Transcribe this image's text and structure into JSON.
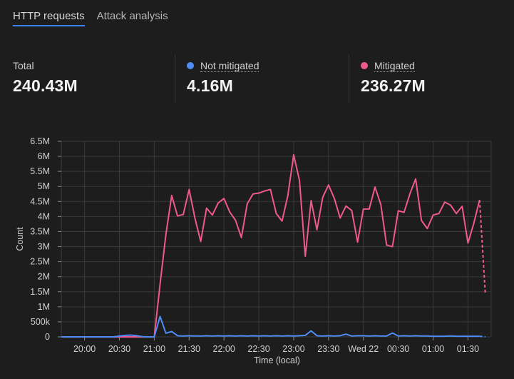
{
  "tabs": [
    {
      "label": "HTTP requests"
    },
    {
      "label": "Attack analysis"
    }
  ],
  "stats": {
    "total": {
      "label": "Total",
      "value": "240.43M"
    },
    "not_mitigated": {
      "label": "Not mitigated",
      "value": "4.16M",
      "color": "#4f8cf7"
    },
    "mitigated": {
      "label": "Mitigated",
      "value": "236.27M",
      "color": "#f0598a"
    }
  },
  "chart_data": {
    "type": "line",
    "xlabel": "Time (local)",
    "ylabel": "Count",
    "ylim": [
      0,
      6500000
    ],
    "y_ticks": [
      {
        "value": 0,
        "label": "0"
      },
      {
        "value": 500000,
        "label": "500k"
      },
      {
        "value": 1000000,
        "label": "1M"
      },
      {
        "value": 1500000,
        "label": "1.5M"
      },
      {
        "value": 2000000,
        "label": "2M"
      },
      {
        "value": 2500000,
        "label": "2.5M"
      },
      {
        "value": 3000000,
        "label": "3M"
      },
      {
        "value": 3500000,
        "label": "3.5M"
      },
      {
        "value": 4000000,
        "label": "4M"
      },
      {
        "value": 4500000,
        "label": "4.5M"
      },
      {
        "value": 5000000,
        "label": "5M"
      },
      {
        "value": 5500000,
        "label": "5.5M"
      },
      {
        "value": 6000000,
        "label": "6M"
      },
      {
        "value": 6500000,
        "label": "6.5M"
      }
    ],
    "xlim": [
      "19:40",
      "01:50"
    ],
    "x_ticks": [
      {
        "value": "20:00",
        "label": "20:00"
      },
      {
        "value": "20:30",
        "label": "20:30"
      },
      {
        "value": "21:00",
        "label": "21:00"
      },
      {
        "value": "21:30",
        "label": "21:30"
      },
      {
        "value": "22:00",
        "label": "22:00"
      },
      {
        "value": "22:30",
        "label": "22:30"
      },
      {
        "value": "23:00",
        "label": "23:00"
      },
      {
        "value": "23:30",
        "label": "23:30"
      },
      {
        "value": "00:00",
        "label": "Wed 22"
      },
      {
        "value": "00:30",
        "label": "00:30"
      },
      {
        "value": "01:00",
        "label": "01:00"
      },
      {
        "value": "01:30",
        "label": "01:30"
      }
    ],
    "grid": true,
    "series": [
      {
        "name": "Mitigated",
        "color": "#f0598a",
        "dashed_last_segment": true,
        "points": [
          [
            "19:40",
            0
          ],
          [
            "19:45",
            0
          ],
          [
            "19:50",
            0
          ],
          [
            "19:55",
            0
          ],
          [
            "20:00",
            0
          ],
          [
            "20:05",
            0
          ],
          [
            "20:10",
            0
          ],
          [
            "20:15",
            0
          ],
          [
            "20:20",
            0
          ],
          [
            "20:25",
            0
          ],
          [
            "20:30",
            0
          ],
          [
            "20:35",
            0
          ],
          [
            "20:40",
            0
          ],
          [
            "20:45",
            0
          ],
          [
            "20:50",
            0
          ],
          [
            "20:55",
            0
          ],
          [
            "21:00",
            0
          ],
          [
            "21:05",
            1750000
          ],
          [
            "21:10",
            3400000
          ],
          [
            "21:15",
            4700000
          ],
          [
            "21:20",
            4020000
          ],
          [
            "21:25",
            4070000
          ],
          [
            "21:30",
            4900000
          ],
          [
            "21:35",
            3950000
          ],
          [
            "21:40",
            3170000
          ],
          [
            "21:45",
            4280000
          ],
          [
            "21:50",
            4050000
          ],
          [
            "21:55",
            4450000
          ],
          [
            "22:00",
            4600000
          ],
          [
            "22:05",
            4150000
          ],
          [
            "22:10",
            3870000
          ],
          [
            "22:15",
            3300000
          ],
          [
            "22:20",
            4420000
          ],
          [
            "22:25",
            4750000
          ],
          [
            "22:30",
            4780000
          ],
          [
            "22:35",
            4850000
          ],
          [
            "22:40",
            4900000
          ],
          [
            "22:45",
            4100000
          ],
          [
            "22:50",
            3850000
          ],
          [
            "22:55",
            4700000
          ],
          [
            "23:00",
            6050000
          ],
          [
            "23:05",
            5200000
          ],
          [
            "23:10",
            2680000
          ],
          [
            "23:15",
            4530000
          ],
          [
            "23:20",
            3560000
          ],
          [
            "23:25",
            4640000
          ],
          [
            "23:30",
            5050000
          ],
          [
            "23:35",
            4600000
          ],
          [
            "23:40",
            3950000
          ],
          [
            "23:45",
            4350000
          ],
          [
            "23:50",
            4200000
          ],
          [
            "23:55",
            3150000
          ],
          [
            "00:00",
            4250000
          ],
          [
            "00:05",
            4250000
          ],
          [
            "00:10",
            4980000
          ],
          [
            "00:15",
            4400000
          ],
          [
            "00:20",
            3050000
          ],
          [
            "00:25",
            3000000
          ],
          [
            "00:30",
            4190000
          ],
          [
            "00:35",
            4140000
          ],
          [
            "00:40",
            4750000
          ],
          [
            "00:45",
            5250000
          ],
          [
            "00:50",
            3870000
          ],
          [
            "00:55",
            3600000
          ],
          [
            "01:00",
            4050000
          ],
          [
            "01:05",
            4100000
          ],
          [
            "01:10",
            4480000
          ],
          [
            "01:15",
            4380000
          ],
          [
            "01:20",
            4100000
          ],
          [
            "01:25",
            4340000
          ],
          [
            "01:30",
            3120000
          ],
          [
            "01:35",
            3770000
          ],
          [
            "01:40",
            4550000
          ],
          [
            "01:45",
            1400000
          ]
        ]
      },
      {
        "name": "Not mitigated",
        "color": "#4f8cf7",
        "dashed_last_segment": true,
        "points": [
          [
            "19:40",
            0
          ],
          [
            "19:45",
            0
          ],
          [
            "19:50",
            0
          ],
          [
            "19:55",
            0
          ],
          [
            "20:00",
            0
          ],
          [
            "20:05",
            0
          ],
          [
            "20:10",
            0
          ],
          [
            "20:15",
            0
          ],
          [
            "20:20",
            0
          ],
          [
            "20:25",
            0
          ],
          [
            "20:30",
            30000
          ],
          [
            "20:35",
            50000
          ],
          [
            "20:40",
            60000
          ],
          [
            "20:45",
            40000
          ],
          [
            "20:50",
            5000
          ],
          [
            "20:55",
            0
          ],
          [
            "21:00",
            0
          ],
          [
            "21:05",
            680000
          ],
          [
            "21:10",
            120000
          ],
          [
            "21:15",
            180000
          ],
          [
            "21:20",
            40000
          ],
          [
            "21:25",
            30000
          ],
          [
            "21:30",
            40000
          ],
          [
            "21:35",
            30000
          ],
          [
            "21:40",
            30000
          ],
          [
            "21:45",
            40000
          ],
          [
            "21:50",
            30000
          ],
          [
            "21:55",
            40000
          ],
          [
            "22:00",
            30000
          ],
          [
            "22:05",
            40000
          ],
          [
            "22:10",
            30000
          ],
          [
            "22:15",
            40000
          ],
          [
            "22:20",
            30000
          ],
          [
            "22:25",
            40000
          ],
          [
            "22:30",
            30000
          ],
          [
            "22:35",
            40000
          ],
          [
            "22:40",
            30000
          ],
          [
            "22:45",
            40000
          ],
          [
            "22:50",
            30000
          ],
          [
            "22:55",
            40000
          ],
          [
            "23:00",
            30000
          ],
          [
            "23:05",
            40000
          ],
          [
            "23:10",
            50000
          ],
          [
            "23:15",
            200000
          ],
          [
            "23:20",
            40000
          ],
          [
            "23:25",
            30000
          ],
          [
            "23:30",
            40000
          ],
          [
            "23:35",
            30000
          ],
          [
            "23:40",
            40000
          ],
          [
            "23:45",
            90000
          ],
          [
            "23:50",
            30000
          ],
          [
            "23:55",
            40000
          ],
          [
            "00:00",
            40000
          ],
          [
            "00:05",
            30000
          ],
          [
            "00:10",
            40000
          ],
          [
            "00:15",
            30000
          ],
          [
            "00:20",
            30000
          ],
          [
            "00:25",
            130000
          ],
          [
            "00:30",
            30000
          ],
          [
            "00:35",
            40000
          ],
          [
            "00:40",
            30000
          ],
          [
            "00:45",
            40000
          ],
          [
            "00:50",
            30000
          ],
          [
            "00:55",
            30000
          ],
          [
            "01:00",
            20000
          ],
          [
            "01:05",
            20000
          ],
          [
            "01:10",
            20000
          ],
          [
            "01:15",
            30000
          ],
          [
            "01:20",
            20000
          ],
          [
            "01:25",
            20000
          ],
          [
            "01:30",
            20000
          ],
          [
            "01:35",
            20000
          ],
          [
            "01:40",
            20000
          ],
          [
            "01:45",
            5000
          ]
        ]
      }
    ]
  }
}
